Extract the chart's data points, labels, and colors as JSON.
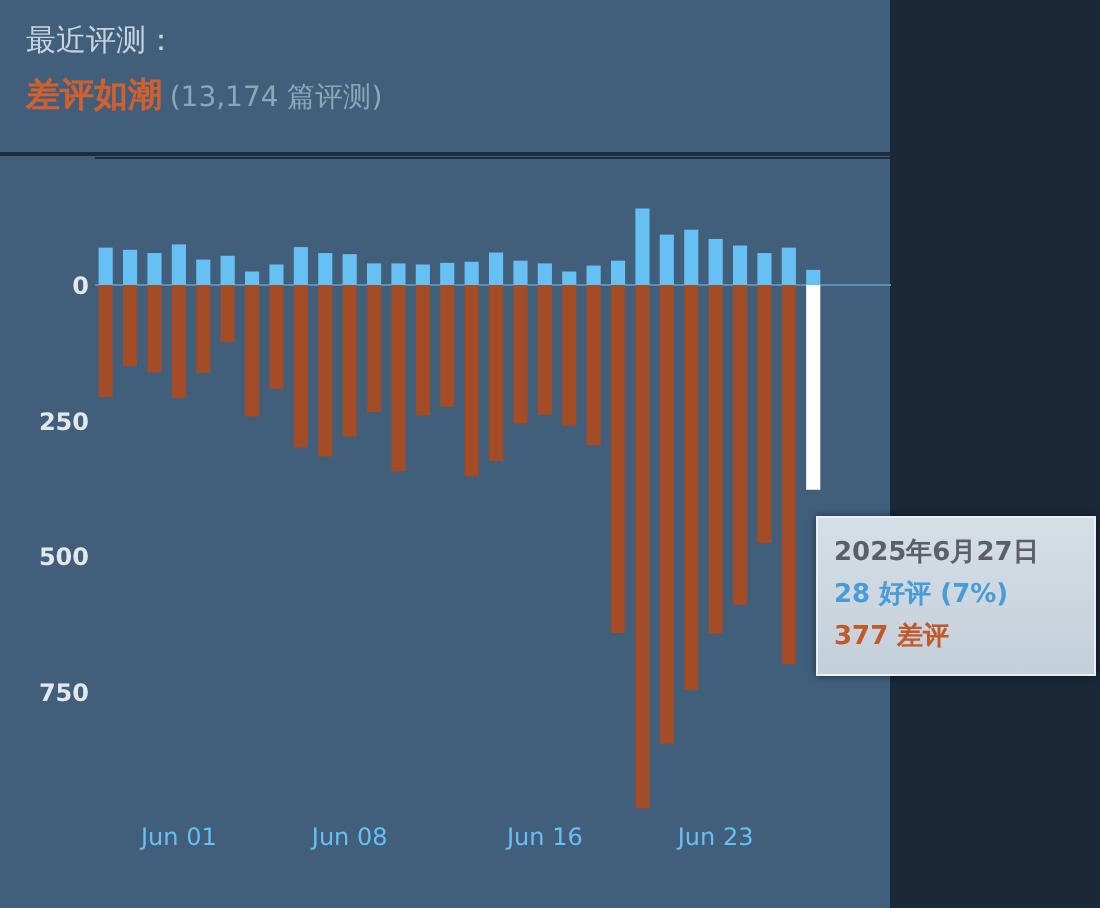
{
  "chart_data": {
    "type": "bar",
    "title": "最近评测：",
    "subtitle": "差评如潮",
    "annotations": [
      "(13,174 篇评测)",
      "2025年6月27日",
      "28 好评 (7%)",
      "377 差评"
    ],
    "x": [
      "2025-05-29",
      "2025-05-30",
      "2025-05-31",
      "2025-06-01",
      "2025-06-02",
      "2025-06-03",
      "2025-06-04",
      "2025-06-05",
      "2025-06-06",
      "2025-06-07",
      "2025-06-08",
      "2025-06-09",
      "2025-06-10",
      "2025-06-11",
      "2025-06-12",
      "2025-06-13",
      "2025-06-14",
      "2025-06-15",
      "2025-06-16",
      "2025-06-17",
      "2025-06-18",
      "2025-06-19",
      "2025-06-20",
      "2025-06-21",
      "2025-06-22",
      "2025-06-23",
      "2025-06-24",
      "2025-06-25",
      "2025-06-26",
      "2025-06-27"
    ],
    "stacked": true,
    "series": [
      {
        "color": "#66c0f4",
        "values": [
          69,
          65,
          59,
          75,
          47,
          54,
          25,
          38,
          70,
          59,
          57,
          40,
          40,
          38,
          41,
          43,
          60,
          45,
          40,
          25,
          36,
          45,
          141,
          93,
          102,
          85,
          73,
          59,
          69,
          28
        ]
      },
      {
        "color": "#a34c25",
        "colors": [
          null,
          null,
          null,
          null,
          null,
          null,
          null,
          null,
          null,
          null,
          null,
          null,
          null,
          null,
          null,
          null,
          null,
          null,
          null,
          null,
          null,
          null,
          null,
          null,
          null,
          null,
          null,
          null,
          null,
          "#ffffff"
        ],
        "values": [
          -206,
          -149,
          -161,
          -208,
          -162,
          -105,
          -242,
          -191,
          -299,
          -316,
          -279,
          -234,
          -343,
          -240,
          -224,
          -352,
          -324,
          -255,
          -239,
          -259,
          -295,
          -641,
          -964,
          -845,
          -746,
          -642,
          -589,
          -475,
          -698,
          -377
        ]
      }
    ],
    "xlim": [
      "2025-05-28T13:30",
      "2025-06-30T04:30"
    ],
    "xticks": [
      {
        "value": "2025-06-01",
        "label": "Jun 01"
      },
      {
        "value": "2025-06-08",
        "label": "Jun 08"
      },
      {
        "value": "2025-06-16",
        "label": "Jun 16"
      },
      {
        "value": "2025-06-23",
        "label": "Jun 23"
      }
    ],
    "ylim": [
      -980,
      236
    ],
    "yticks": [
      0,
      {
        "value": -250,
        "label": "250"
      },
      {
        "value": -500,
        "label": "500"
      },
      {
        "value": -750,
        "label": "750"
      }
    ],
    "ref_lines": [
      {
        "axis": "y",
        "value": 0,
        "color": "#5d8fb5"
      }
    ]
  }
}
